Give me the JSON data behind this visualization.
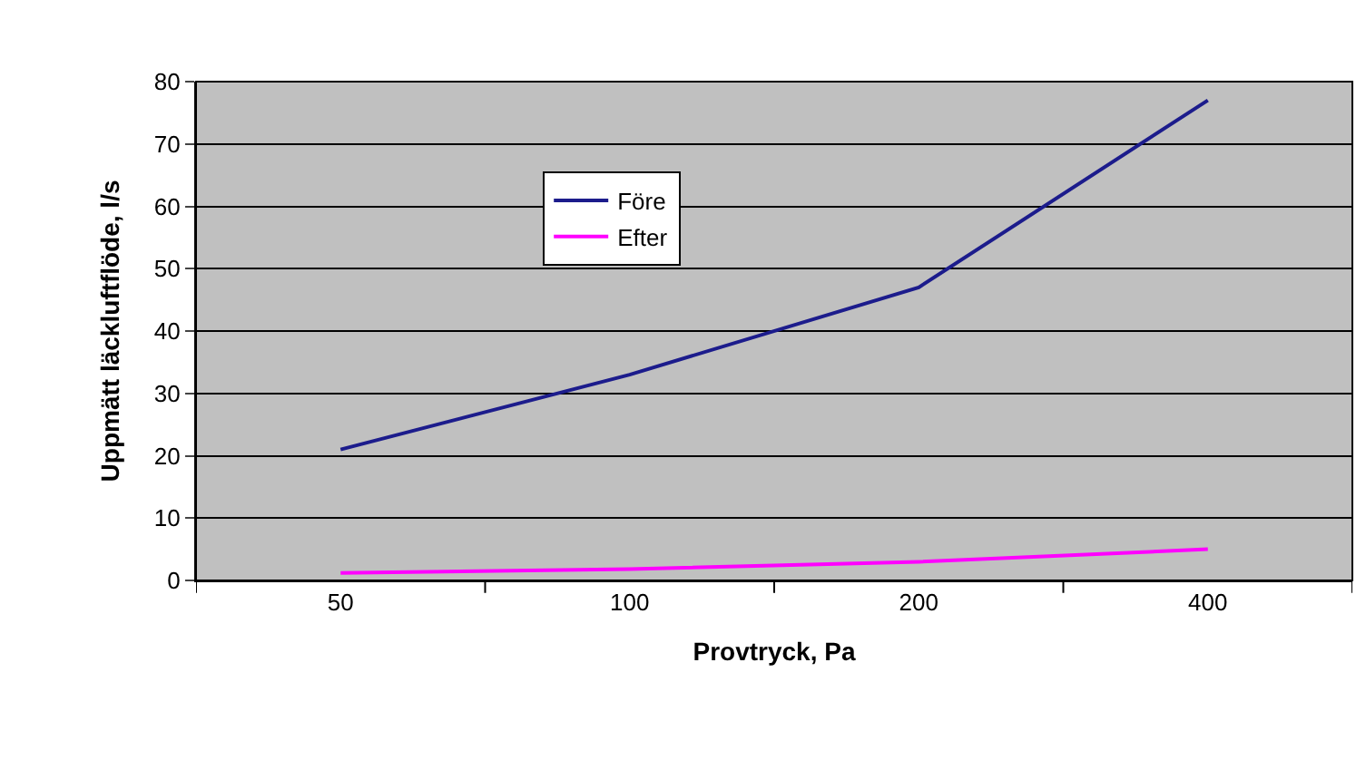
{
  "chart_data": {
    "type": "line",
    "xlabel": "Provtryck, Pa",
    "ylabel": "Uppmätt läckluftflöde, l/s",
    "categories": [
      "50",
      "100",
      "200",
      "400"
    ],
    "series": [
      {
        "name": "Före",
        "color": "#1c1c8c",
        "values": [
          21,
          33,
          47,
          77
        ]
      },
      {
        "name": "Efter",
        "color": "#ff00ff",
        "values": [
          1.2,
          1.8,
          3,
          5
        ]
      }
    ],
    "ylim": [
      0,
      80
    ],
    "yticks": [
      0,
      10,
      20,
      30,
      40,
      50,
      60,
      70,
      80
    ],
    "grid": "y",
    "legend": "top left",
    "marker": "none",
    "line_style": "solid"
  }
}
